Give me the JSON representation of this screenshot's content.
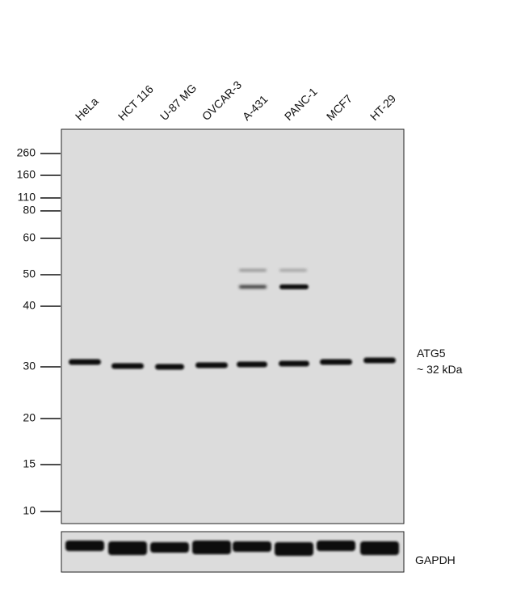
{
  "lanes": [
    "HeLa",
    "HCT 116",
    "U-87 MG",
    "OVCAR-3",
    "A-431",
    "PANC-1",
    "MCF7",
    "HT-29"
  ],
  "markers": [
    "260",
    "160",
    "110",
    "80",
    "60",
    "50",
    "40",
    "30",
    "20",
    "15",
    "10"
  ],
  "target": {
    "name": "ATG5",
    "size": "~ 32 kDa"
  },
  "loading_control": "GAPDH"
}
